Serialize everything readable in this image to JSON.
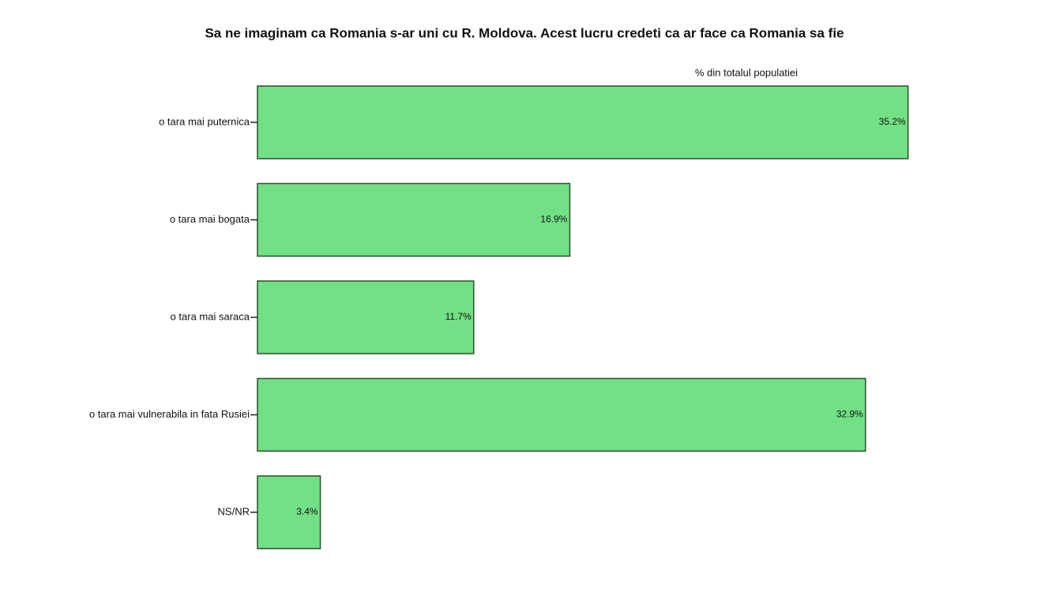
{
  "chart_data": {
    "type": "hbar",
    "title": "Sa ne imaginam ca Romania s-ar uni cu R. Moldova. Acest lucru credeti ca ar face ca Romania sa fie",
    "subtitle": "% din totalul populatiei",
    "categories": [
      "o tara mai puternica",
      "o tara mai bogata",
      "o tara mai saraca",
      "o tara mai vulnerabila in fata Rusiei",
      "NS/NR"
    ],
    "values": [
      35.2,
      16.9,
      11.7,
      32.9,
      3.4
    ],
    "value_labels": [
      "35.2%",
      "16.9%",
      "11.7%",
      "32.9%",
      "3.4%"
    ],
    "color": "#72e085"
  }
}
